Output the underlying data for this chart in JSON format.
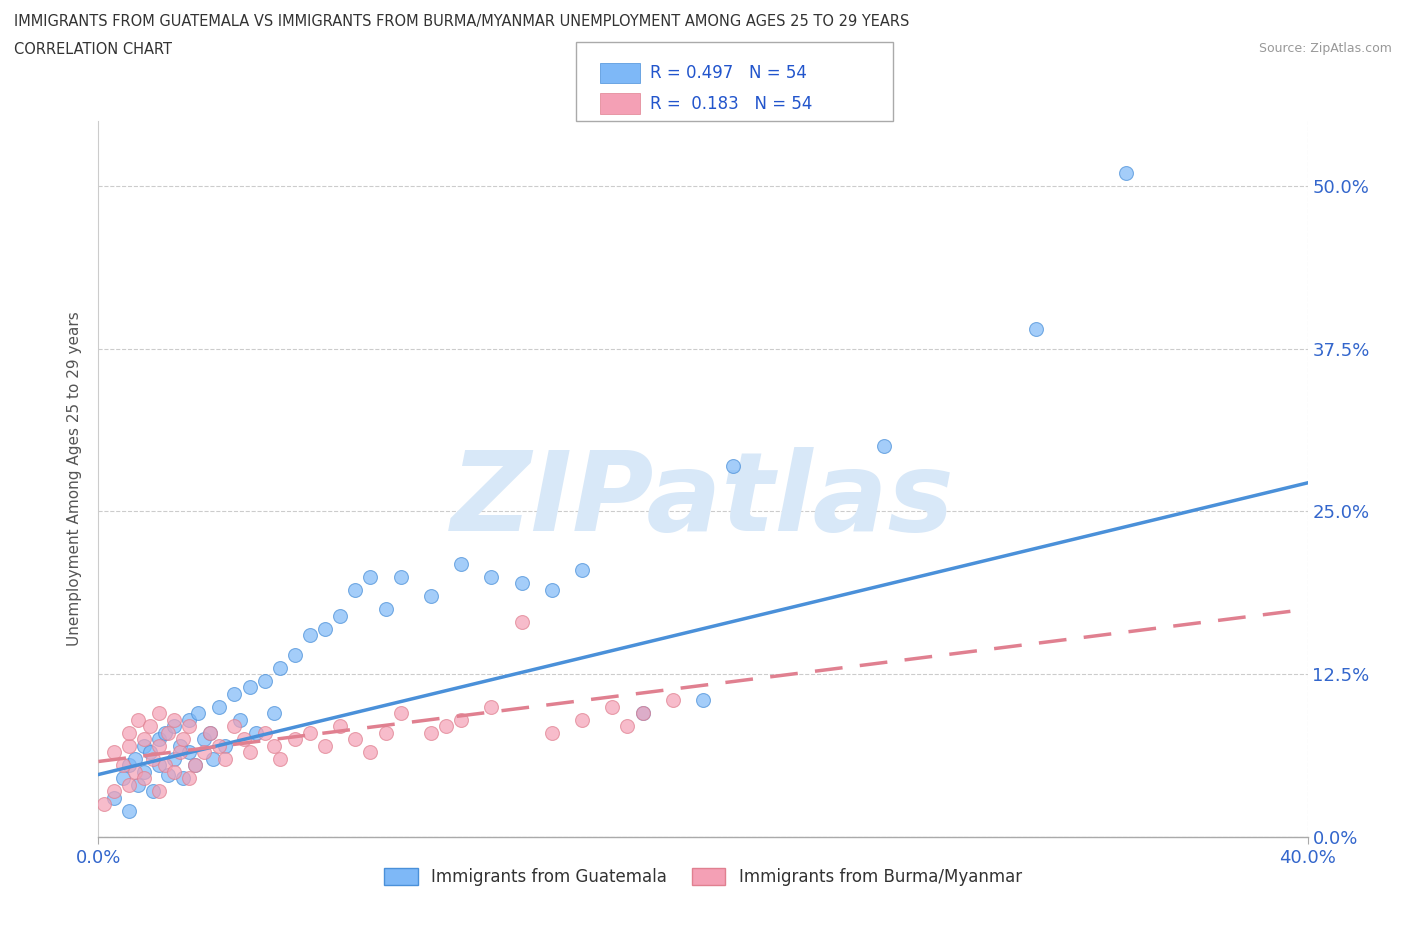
{
  "title_line1": "IMMIGRANTS FROM GUATEMALA VS IMMIGRANTS FROM BURMA/MYANMAR UNEMPLOYMENT AMONG AGES 25 TO 29 YEARS",
  "title_line2": "CORRELATION CHART",
  "source_text": "Source: ZipAtlas.com",
  "ylabel": "Unemployment Among Ages 25 to 29 years",
  "xlim": [
    0.0,
    0.4
  ],
  "ylim": [
    0.0,
    0.55
  ],
  "ytick_values": [
    0.0,
    0.125,
    0.25,
    0.375,
    0.5
  ],
  "R_guatemala": 0.497,
  "N_guatemala": 54,
  "R_burma": 0.183,
  "N_burma": 54,
  "color_guatemala": "#7eb8f7",
  "color_burma": "#f4a0b5",
  "color_line_guatemala": "#4a90d9",
  "color_line_burma": "#e08090",
  "color_text_blue": "#2255cc",
  "color_tick_blue": "#3366cc",
  "background_color": "#ffffff",
  "watermark_text": "ZIPatlas",
  "watermark_color": "#d8e8f8",
  "legend_label_guatemala": "Immigrants from Guatemala",
  "legend_label_burma": "Immigrants from Burma/Myanmar",
  "guatemala_x": [
    0.005,
    0.008,
    0.01,
    0.01,
    0.012,
    0.013,
    0.015,
    0.015,
    0.017,
    0.018,
    0.02,
    0.02,
    0.022,
    0.023,
    0.025,
    0.025,
    0.027,
    0.028,
    0.03,
    0.03,
    0.032,
    0.033,
    0.035,
    0.037,
    0.038,
    0.04,
    0.042,
    0.045,
    0.047,
    0.05,
    0.052,
    0.055,
    0.058,
    0.06,
    0.065,
    0.07,
    0.075,
    0.08,
    0.085,
    0.09,
    0.095,
    0.1,
    0.11,
    0.12,
    0.13,
    0.14,
    0.15,
    0.16,
    0.18,
    0.2,
    0.21,
    0.26,
    0.31,
    0.34
  ],
  "guatemala_y": [
    0.03,
    0.045,
    0.055,
    0.02,
    0.06,
    0.04,
    0.07,
    0.05,
    0.065,
    0.035,
    0.075,
    0.055,
    0.08,
    0.048,
    0.085,
    0.06,
    0.07,
    0.045,
    0.09,
    0.065,
    0.055,
    0.095,
    0.075,
    0.08,
    0.06,
    0.1,
    0.07,
    0.11,
    0.09,
    0.115,
    0.08,
    0.12,
    0.095,
    0.13,
    0.14,
    0.155,
    0.16,
    0.17,
    0.19,
    0.2,
    0.175,
    0.2,
    0.185,
    0.21,
    0.2,
    0.195,
    0.19,
    0.205,
    0.095,
    0.105,
    0.285,
    0.3,
    0.39,
    0.51
  ],
  "burma_x": [
    0.002,
    0.005,
    0.005,
    0.008,
    0.01,
    0.01,
    0.01,
    0.012,
    0.013,
    0.015,
    0.015,
    0.017,
    0.018,
    0.02,
    0.02,
    0.02,
    0.022,
    0.023,
    0.025,
    0.025,
    0.027,
    0.028,
    0.03,
    0.03,
    0.032,
    0.035,
    0.037,
    0.04,
    0.042,
    0.045,
    0.048,
    0.05,
    0.055,
    0.058,
    0.06,
    0.065,
    0.07,
    0.075,
    0.08,
    0.085,
    0.09,
    0.095,
    0.1,
    0.11,
    0.115,
    0.12,
    0.13,
    0.14,
    0.15,
    0.16,
    0.17,
    0.175,
    0.18,
    0.19
  ],
  "burma_y": [
    0.025,
    0.035,
    0.065,
    0.055,
    0.04,
    0.07,
    0.08,
    0.05,
    0.09,
    0.045,
    0.075,
    0.085,
    0.06,
    0.035,
    0.07,
    0.095,
    0.055,
    0.08,
    0.05,
    0.09,
    0.065,
    0.075,
    0.045,
    0.085,
    0.055,
    0.065,
    0.08,
    0.07,
    0.06,
    0.085,
    0.075,
    0.065,
    0.08,
    0.07,
    0.06,
    0.075,
    0.08,
    0.07,
    0.085,
    0.075,
    0.065,
    0.08,
    0.095,
    0.08,
    0.085,
    0.09,
    0.1,
    0.165,
    0.08,
    0.09,
    0.1,
    0.085,
    0.095,
    0.105
  ],
  "line_guat_x0": 0.0,
  "line_guat_y0": 0.048,
  "line_guat_x1": 0.4,
  "line_guat_y1": 0.272,
  "line_burma_x0": 0.0,
  "line_burma_y0": 0.058,
  "line_burma_x1": 0.4,
  "line_burma_y1": 0.175
}
